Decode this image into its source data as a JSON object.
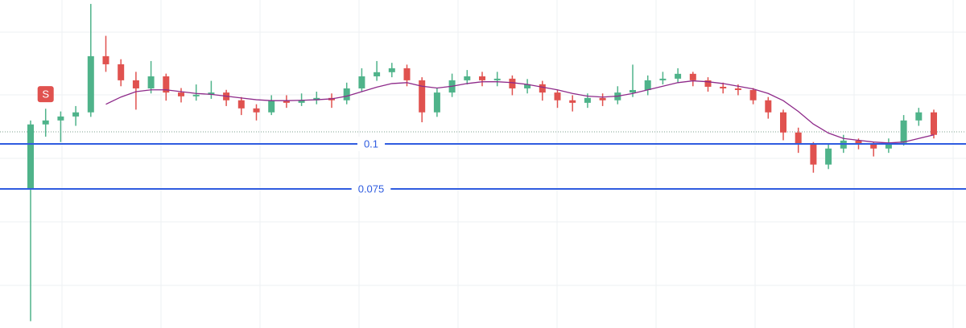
{
  "chart_data": {
    "type": "candlestick",
    "ylim": [
      0.0013,
      0.1799
    ],
    "up_color": "#4fb38a",
    "down_color": "#e0524f",
    "open": [
      0.0751,
      0.1108,
      0.113,
      0.1152,
      0.1175,
      0.1487,
      0.1442,
      0.1353,
      0.1308,
      0.1375,
      0.1285,
      0.1264,
      0.1273,
      0.1285,
      0.1242,
      0.1197,
      0.1175,
      0.1242,
      0.1228,
      0.1242,
      0.1255,
      0.1242,
      0.1308,
      0.1375,
      0.1398,
      0.142,
      0.1353,
      0.1175,
      0.1285,
      0.1353,
      0.1375,
      0.1353,
      0.1362,
      0.1308,
      0.1331,
      0.1285,
      0.1242,
      0.1228,
      0.1255,
      0.1242,
      0.1285,
      0.1299,
      0.1353,
      0.1362,
      0.1389,
      0.1353,
      0.1317,
      0.1308,
      0.1299,
      0.1242,
      0.1175,
      0.1063,
      0.0996,
      0.0885,
      0.0974,
      0.1018,
      0.0996,
      0.0974,
      0.1005,
      0.113,
      0.1175
    ],
    "high": [
      0.113,
      0.1195,
      0.118,
      0.121,
      0.1777,
      0.16,
      0.147,
      0.14,
      0.146,
      0.139,
      0.131,
      0.133,
      0.135,
      0.13,
      0.126,
      0.122,
      0.127,
      0.127,
      0.128,
      0.129,
      0.128,
      0.134,
      0.142,
      0.146,
      0.145,
      0.144,
      0.137,
      0.131,
      0.139,
      0.141,
      0.14,
      0.14,
      0.138,
      0.136,
      0.135,
      0.13,
      0.127,
      0.128,
      0.128,
      0.132,
      0.144,
      0.138,
      0.14,
      0.142,
      0.14,
      0.137,
      0.134,
      0.133,
      0.131,
      0.126,
      0.119,
      0.109,
      0.101,
      0.1,
      0.105,
      0.103,
      0.101,
      0.103,
      0.116,
      0.12,
      0.119
    ],
    "low": [
      0.0015,
      0.104,
      0.101,
      0.11,
      0.115,
      0.14,
      0.132,
      0.119,
      0.128,
      0.124,
      0.123,
      0.124,
      0.125,
      0.121,
      0.116,
      0.113,
      0.116,
      0.12,
      0.121,
      0.122,
      0.12,
      0.122,
      0.129,
      0.135,
      0.137,
      0.132,
      0.112,
      0.115,
      0.126,
      0.133,
      0.132,
      0.132,
      0.127,
      0.128,
      0.124,
      0.12,
      0.118,
      0.12,
      0.121,
      0.122,
      0.126,
      0.127,
      0.133,
      0.134,
      0.132,
      0.129,
      0.128,
      0.127,
      0.122,
      0.114,
      0.102,
      0.095,
      0.084,
      0.086,
      0.095,
      0.097,
      0.093,
      0.095,
      0.099,
      0.11,
      0.103
    ],
    "close": [
      0.1108,
      0.113,
      0.1152,
      0.1175,
      0.1487,
      0.1442,
      0.1353,
      0.1308,
      0.1375,
      0.1285,
      0.1264,
      0.1273,
      0.1285,
      0.1242,
      0.1197,
      0.1175,
      0.1242,
      0.1228,
      0.1242,
      0.1255,
      0.1242,
      0.1308,
      0.1375,
      0.1398,
      0.142,
      0.1353,
      0.1175,
      0.1285,
      0.1353,
      0.1375,
      0.1353,
      0.1362,
      0.1308,
      0.1331,
      0.1285,
      0.1242,
      0.1228,
      0.1255,
      0.1242,
      0.1285,
      0.1299,
      0.1353,
      0.1362,
      0.1389,
      0.1353,
      0.1317,
      0.1308,
      0.1299,
      0.1242,
      0.1175,
      0.1063,
      0.0996,
      0.0885,
      0.0974,
      0.1018,
      0.0996,
      0.0974,
      0.1005,
      0.113,
      0.1175,
      0.105
    ],
    "ma_lines": [
      {
        "color": "#8e2a8a",
        "values": [
          null,
          null,
          null,
          null,
          null,
          0.122,
          0.126,
          0.129,
          0.13,
          0.13,
          0.129,
          0.128,
          0.1275,
          0.1265,
          0.1255,
          0.1245,
          0.124,
          0.124,
          0.1242,
          0.1245,
          0.125,
          0.1265,
          0.129,
          0.1315,
          0.1335,
          0.134,
          0.132,
          0.131,
          0.132,
          0.1335,
          0.1345,
          0.1345,
          0.134,
          0.133,
          0.1315,
          0.13,
          0.128,
          0.1265,
          0.126,
          0.1265,
          0.128,
          0.13,
          0.132,
          0.134,
          0.135,
          0.1345,
          0.1335,
          0.132,
          0.1305,
          0.128,
          0.124,
          0.118,
          0.111,
          0.106,
          0.103,
          0.102,
          0.101,
          0.1005,
          0.101,
          0.103,
          0.105
        ]
      }
    ],
    "levels": [
      {
        "value": 0.1,
        "label": "0.1"
      },
      {
        "value": 0.075,
        "label": "0.075"
      }
    ],
    "level_color": "#2f5ce0",
    "price_line": 0.1067,
    "markers": [
      {
        "label": "S",
        "index": 1,
        "price": 0.1276,
        "color": "#e0524f"
      }
    ]
  }
}
